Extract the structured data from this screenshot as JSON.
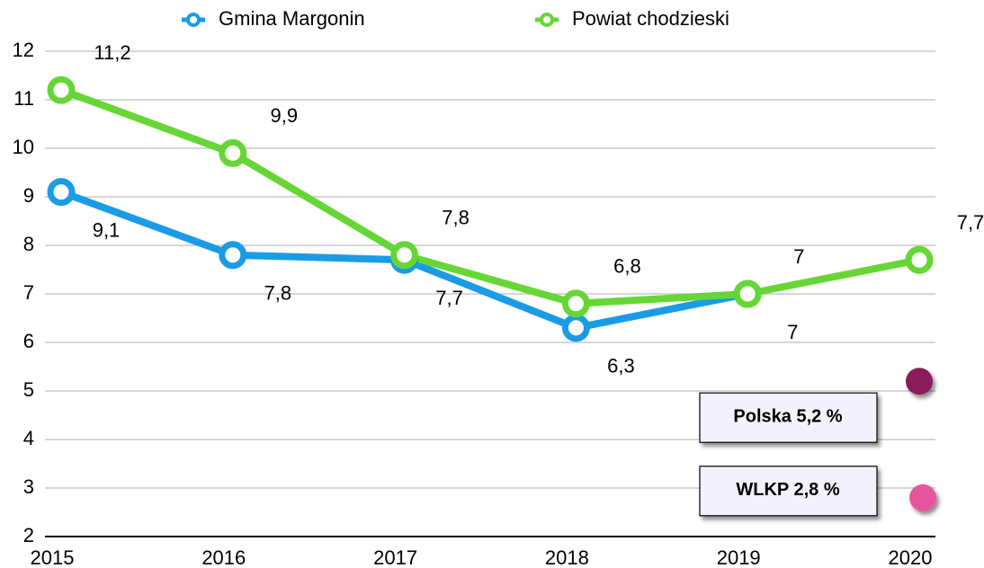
{
  "chart_data": {
    "type": "line",
    "categories": [
      "2015",
      "2016",
      "2017",
      "2018",
      "2019",
      "2020"
    ],
    "series": [
      {
        "name": "Gmina Margonin",
        "color": "#1a9be6",
        "values": [
          9.1,
          7.8,
          7.7,
          6.3,
          7,
          null
        ],
        "value_labels": [
          "9,1",
          "7,8",
          "7,7",
          "6,3",
          "7",
          null
        ]
      },
      {
        "name": "Powiat chodzieski",
        "color": "#66d636",
        "values": [
          11.2,
          9.9,
          7.8,
          6.8,
          7,
          7.7
        ],
        "value_labels": [
          "11,2",
          "9,9",
          "7,8",
          "6,8",
          "7",
          "7,7"
        ]
      }
    ],
    "ylim": [
      2,
      12
    ],
    "yticks": [
      2,
      3,
      4,
      5,
      6,
      7,
      8,
      9,
      10,
      11,
      12
    ],
    "grid": true,
    "legend": "top",
    "annotations": [
      {
        "label": "Polska 5,2 %",
        "value": 5.2,
        "color": "#8b1a5a"
      },
      {
        "label": "WLKP 2,8 %",
        "value": 2.8,
        "color": "#e8559e"
      }
    ]
  }
}
